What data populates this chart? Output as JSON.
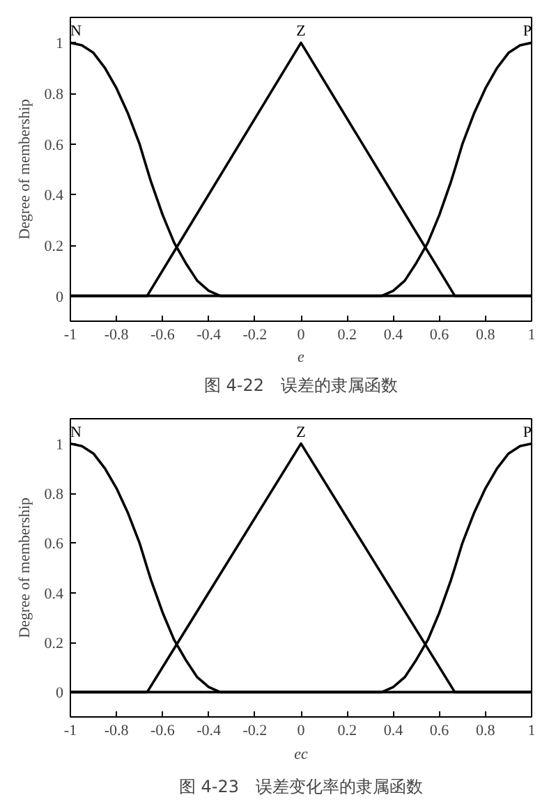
{
  "chart_data": [
    {
      "type": "line",
      "xlabel": "e",
      "ylabel": "Degree of membership",
      "annotations": [
        "图 4-22　误差的隶属函数"
      ],
      "xlim": [
        -1,
        1
      ],
      "ylim": [
        -0.1,
        1.1
      ],
      "xticks": [
        -1,
        -0.8,
        -0.6,
        -0.4,
        -0.2,
        0,
        0.2,
        0.4,
        0.6,
        0.8,
        1
      ],
      "yticks": [
        0,
        0.2,
        0.4,
        0.6,
        0.8,
        1
      ],
      "grid": false,
      "legend": false,
      "line_style": "solid",
      "series": [
        {
          "name": "N",
          "color": "#000000",
          "x": [
            -1,
            -0.95,
            -0.9,
            -0.85,
            -0.8,
            -0.75,
            -0.7,
            -0.667,
            -0.65,
            -0.6,
            -0.55,
            -0.5,
            -0.45,
            -0.4,
            -0.35,
            -0.333,
            1
          ],
          "values": [
            1,
            0.99,
            0.96,
            0.9,
            0.82,
            0.72,
            0.6,
            0.5,
            0.45,
            0.32,
            0.21,
            0.13,
            0.06,
            0.02,
            0,
            0,
            0
          ]
        },
        {
          "name": "Z",
          "color": "#000000",
          "x": [
            -1,
            -0.667,
            0,
            0.667,
            1
          ],
          "values": [
            0,
            0,
            1,
            0,
            0
          ]
        },
        {
          "name": "P",
          "color": "#000000",
          "x": [
            -1,
            0.333,
            0.35,
            0.4,
            0.45,
            0.5,
            0.55,
            0.6,
            0.65,
            0.667,
            0.7,
            0.75,
            0.8,
            0.85,
            0.9,
            0.95,
            1
          ],
          "values": [
            0,
            0,
            0,
            0.02,
            0.06,
            0.13,
            0.21,
            0.32,
            0.45,
            0.5,
            0.6,
            0.72,
            0.82,
            0.9,
            0.96,
            0.99,
            1
          ]
        }
      ]
    },
    {
      "type": "line",
      "xlabel": "ec",
      "ylabel": "Degree of membership",
      "annotations": [
        "图 4-23　误差变化率的隶属函数"
      ],
      "xlim": [
        -1,
        1
      ],
      "ylim": [
        -0.1,
        1.1
      ],
      "xticks": [
        -1,
        -0.8,
        -0.6,
        -0.4,
        -0.2,
        0,
        0.2,
        0.4,
        0.6,
        0.8,
        1
      ],
      "yticks": [
        0,
        0.2,
        0.4,
        0.6,
        0.8,
        1
      ],
      "grid": false,
      "legend": false,
      "line_style": "solid",
      "series": [
        {
          "name": "N",
          "color": "#000000",
          "x": [
            -1,
            -0.95,
            -0.9,
            -0.85,
            -0.8,
            -0.75,
            -0.7,
            -0.667,
            -0.65,
            -0.6,
            -0.55,
            -0.5,
            -0.45,
            -0.4,
            -0.35,
            -0.333,
            1
          ],
          "values": [
            1,
            0.99,
            0.96,
            0.9,
            0.82,
            0.72,
            0.6,
            0.5,
            0.45,
            0.32,
            0.21,
            0.13,
            0.06,
            0.02,
            0,
            0,
            0
          ]
        },
        {
          "name": "Z",
          "color": "#000000",
          "x": [
            -1,
            -0.667,
            0,
            0.667,
            1
          ],
          "values": [
            0,
            0,
            1,
            0,
            0
          ]
        },
        {
          "name": "P",
          "color": "#000000",
          "x": [
            -1,
            0.333,
            0.35,
            0.4,
            0.45,
            0.5,
            0.55,
            0.6,
            0.65,
            0.667,
            0.7,
            0.75,
            0.8,
            0.85,
            0.9,
            0.95,
            1
          ],
          "values": [
            0,
            0,
            0,
            0.02,
            0.06,
            0.13,
            0.21,
            0.32,
            0.45,
            0.5,
            0.6,
            0.72,
            0.82,
            0.9,
            0.96,
            0.99,
            1
          ]
        }
      ]
    }
  ]
}
